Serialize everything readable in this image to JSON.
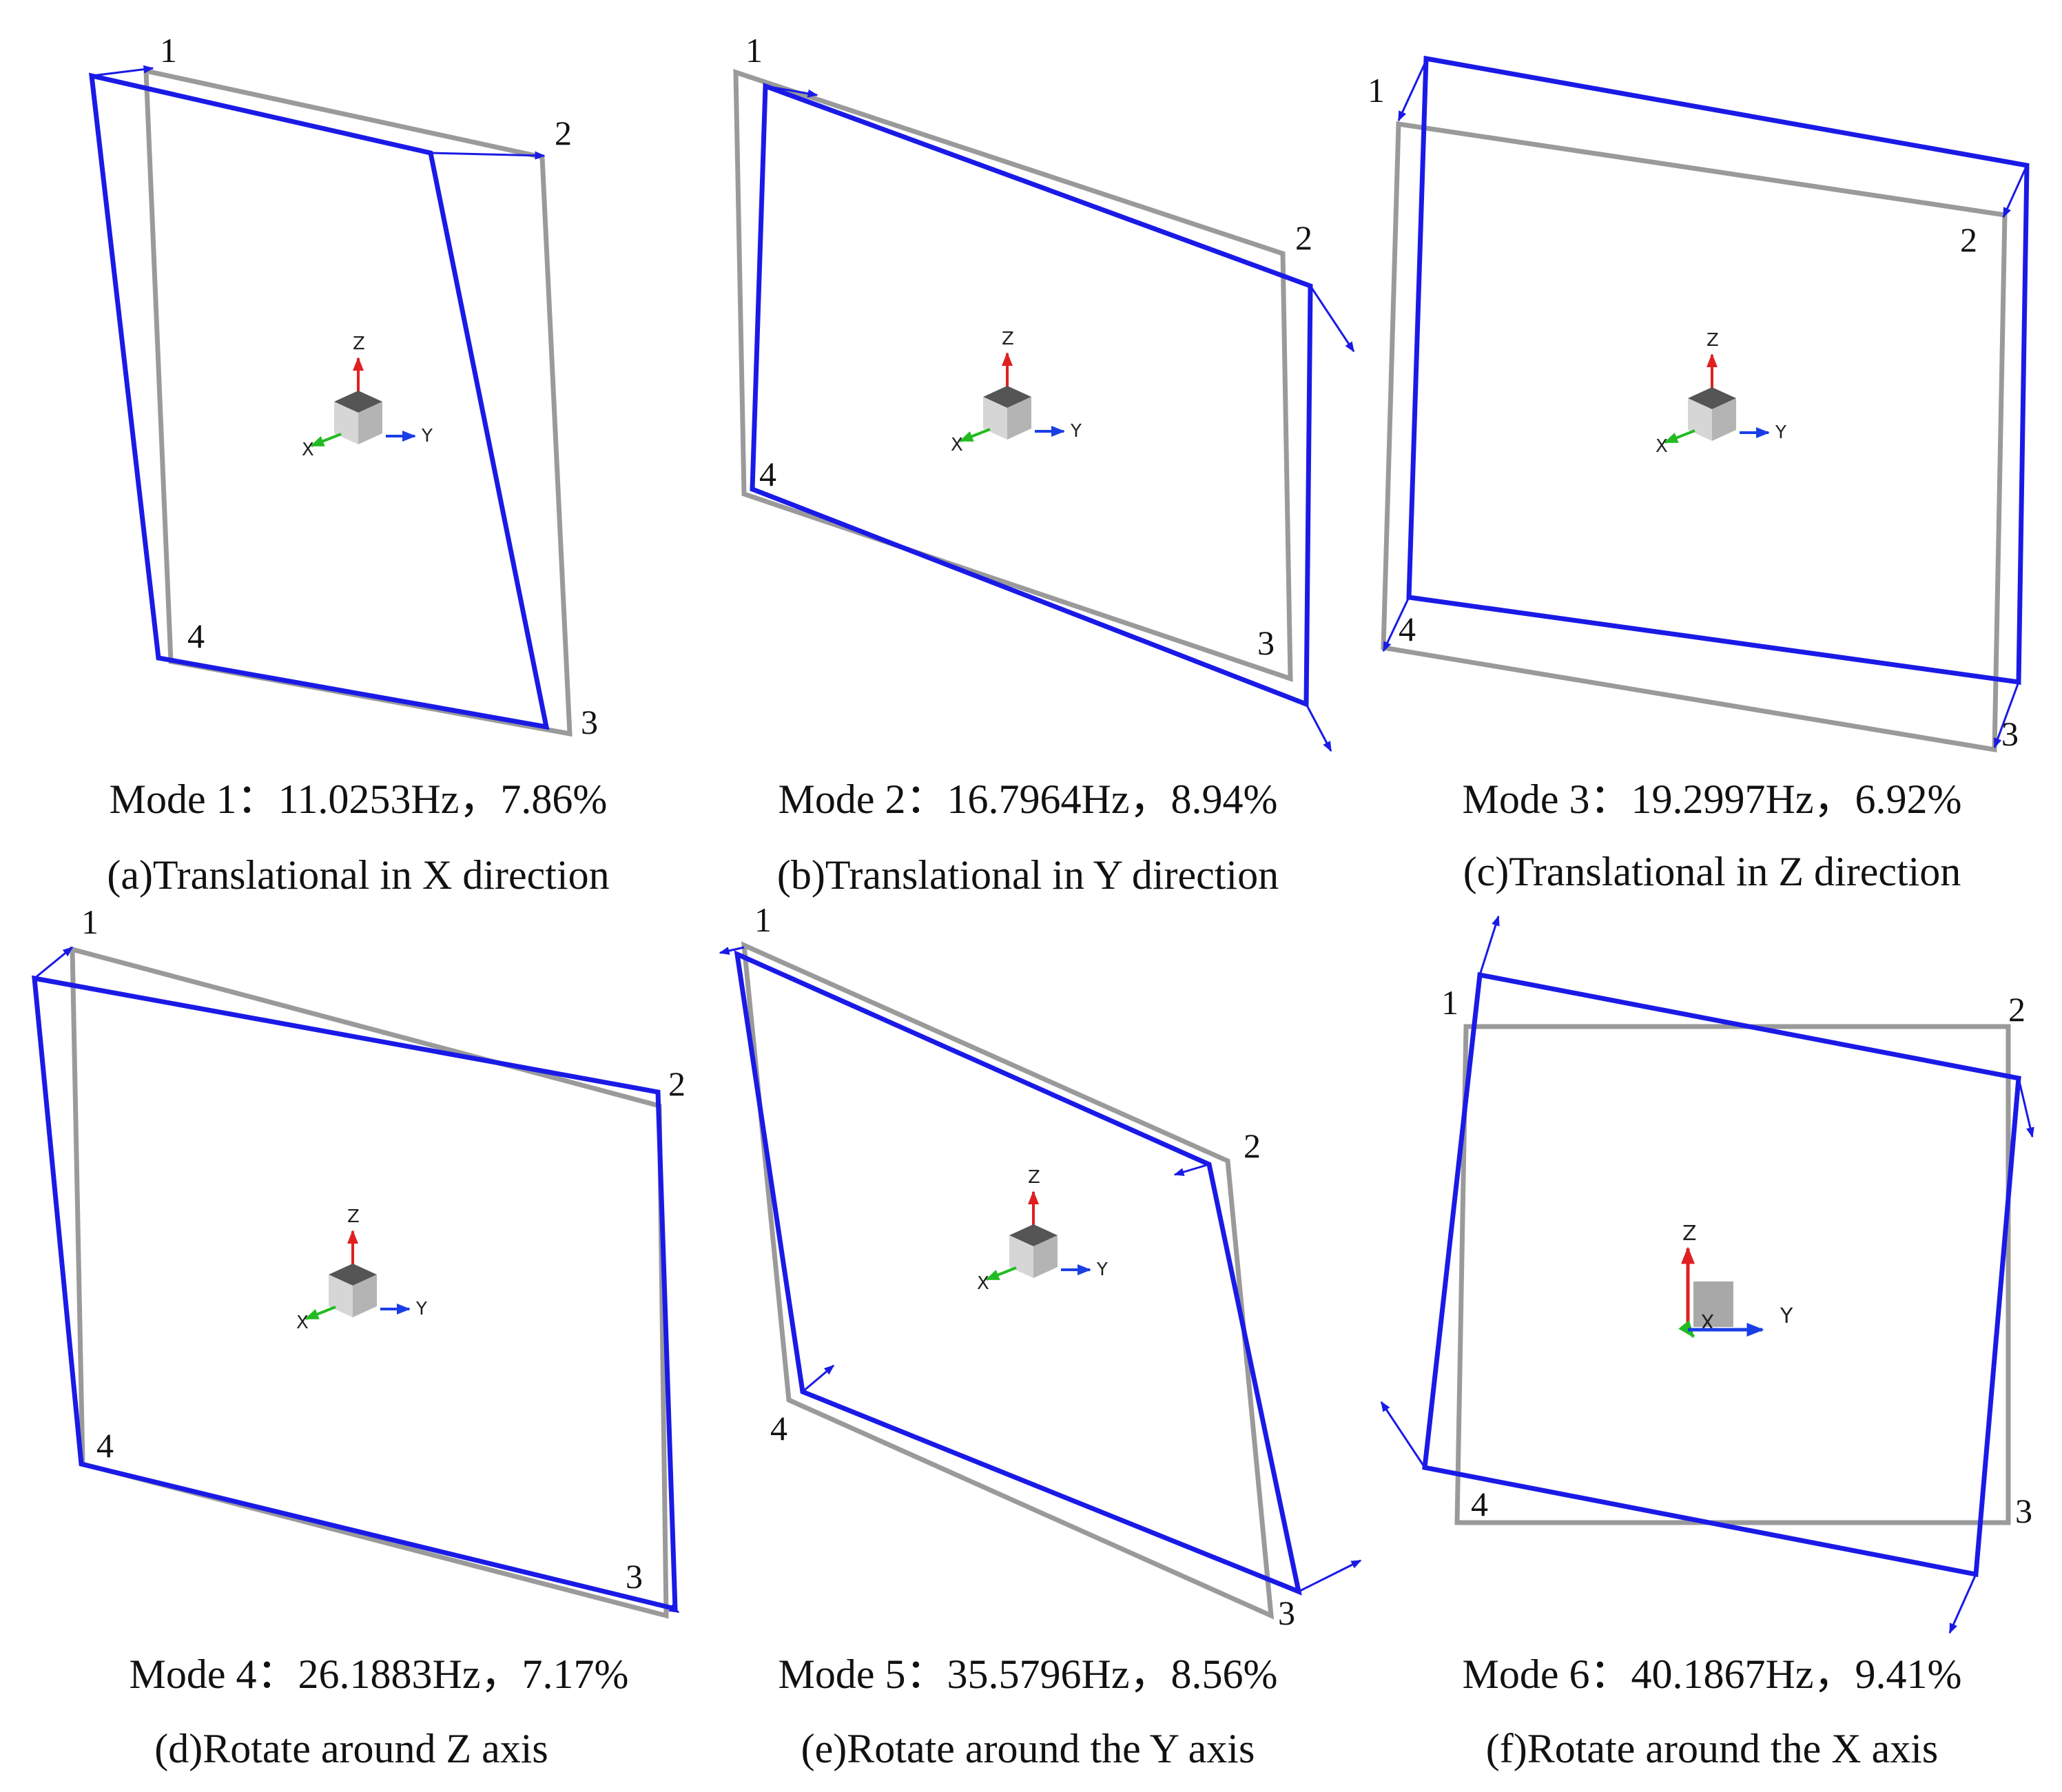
{
  "panels": [
    {
      "id": "a",
      "mode_caption": "Mode 1：11.0253Hz，7.86%",
      "subcaption": "(a)Translational in  X direction",
      "corner_labels": [
        "1",
        "2",
        "3",
        "4"
      ],
      "axis_labels": {
        "z": "Z",
        "x": "X",
        "y": "Y"
      }
    },
    {
      "id": "b",
      "mode_caption": "Mode 2：16.7964Hz，8.94%",
      "subcaption": "(b)Translational in Y direction",
      "corner_labels": [
        "1",
        "2",
        "3",
        "4"
      ],
      "axis_labels": {
        "z": "Z",
        "x": "X",
        "y": "Y"
      }
    },
    {
      "id": "c",
      "mode_caption": "Mode 3：19.2997Hz，6.92%",
      "subcaption": "(c)Translational in Z direction",
      "corner_labels": [
        "1",
        "2",
        "3",
        "4"
      ],
      "axis_labels": {
        "z": "Z",
        "x": "X",
        "y": "Y"
      }
    },
    {
      "id": "d",
      "mode_caption": "Mode 4：26.1883Hz，7.17%",
      "subcaption": "(d)Rotate around  Z axis",
      "corner_labels": [
        "1",
        "2",
        "3",
        "4"
      ],
      "axis_labels": {
        "z": "Z",
        "x": "X",
        "y": "Y"
      }
    },
    {
      "id": "e",
      "mode_caption": "Mode 5：35.5796Hz，8.56%",
      "subcaption": "(e)Rotate around the Y axis",
      "corner_labels": [
        "1",
        "2",
        "3",
        "4"
      ],
      "axis_labels": {
        "z": "Z",
        "x": "X",
        "y": "Y"
      }
    },
    {
      "id": "f",
      "mode_caption": "Mode 6：40.1867Hz，9.41%",
      "subcaption": "(f)Rotate around the X axis",
      "corner_labels": [
        "1",
        "2",
        "3",
        "4"
      ],
      "axis_labels": {
        "z": "Z",
        "x": "X",
        "y": "Y"
      }
    }
  ],
  "colors": {
    "undeformed": "#9a9a9a",
    "deformed": "#1a1ae6",
    "axis_z": "#e02020",
    "axis_x": "#22bb22",
    "axis_y": "#1a3ee6",
    "cube_top": "#555555",
    "cube_front": "#d6d6d6",
    "cube_side": "#b4b4b4"
  }
}
